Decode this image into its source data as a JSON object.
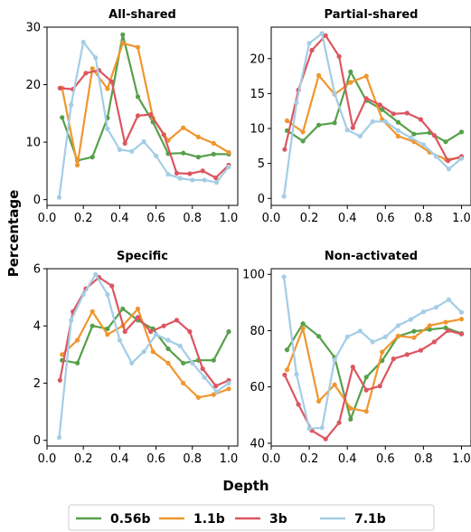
{
  "chart_data": {
    "type": "line",
    "xlabel": "Depth",
    "ylabel": "Percentage",
    "legend": {
      "placement": "bottom",
      "entries": [
        "0.56b",
        "1.1b",
        "3b",
        "7.1b"
      ]
    },
    "series_colors": {
      "0.56b": "#56a04a",
      "1.1b": "#f0962e",
      "3b": "#dc5660",
      "7.1b": "#a4cde6"
    },
    "panels": [
      {
        "title": "All-shared",
        "xlim": [
          0.0,
          1.05
        ],
        "ylim": [
          -1,
          30
        ],
        "xticks": [
          0.0,
          0.2,
          0.4,
          0.6,
          0.8,
          1.0
        ],
        "yticks": [
          0,
          10,
          20,
          30
        ],
        "series": [
          {
            "name": "0.56b",
            "x": [
              0.083,
              0.167,
              0.25,
              0.333,
              0.417,
              0.5,
              0.583,
              0.667,
              0.75,
              0.833,
              0.917,
              1.0
            ],
            "y": [
              14.3,
              6.8,
              7.4,
              14.2,
              28.7,
              17.9,
              13.5,
              8.0,
              8.1,
              7.4,
              7.9,
              7.9
            ]
          },
          {
            "name": "1.1b",
            "x": [
              0.083,
              0.167,
              0.25,
              0.333,
              0.417,
              0.5,
              0.583,
              0.667,
              0.75,
              0.833,
              0.917,
              1.0
            ],
            "y": [
              19.4,
              6.0,
              22.8,
              19.3,
              27.2,
              26.5,
              14.2,
              10.3,
              12.5,
              10.9,
              9.8,
              8.2
            ]
          },
          {
            "name": "3b",
            "x": [
              0.071,
              0.143,
              0.214,
              0.286,
              0.357,
              0.429,
              0.5,
              0.571,
              0.643,
              0.714,
              0.786,
              0.857,
              0.929,
              1.0
            ],
            "y": [
              19.4,
              19.2,
              22.0,
              22.5,
              20.5,
              9.8,
              14.6,
              14.8,
              11.3,
              4.6,
              4.5,
              5.0,
              3.8,
              6.0
            ]
          },
          {
            "name": "7.1b",
            "x": [
              0.067,
              0.133,
              0.2,
              0.267,
              0.333,
              0.4,
              0.467,
              0.533,
              0.6,
              0.667,
              0.733,
              0.8,
              0.867,
              0.933,
              1.0
            ],
            "y": [
              0.4,
              16.5,
              27.4,
              24.7,
              12.3,
              8.7,
              8.4,
              10.1,
              7.6,
              4.4,
              3.7,
              3.4,
              3.4,
              3.0,
              5.7
            ]
          }
        ]
      },
      {
        "title": "Partial-shared",
        "xlim": [
          0.0,
          1.05
        ],
        "ylim": [
          -1,
          24.5
        ],
        "xticks": [
          0.0,
          0.2,
          0.4,
          0.6,
          0.8,
          1.0
        ],
        "yticks": [
          0,
          5,
          10,
          15,
          20
        ],
        "series": [
          {
            "name": "0.56b",
            "x": [
              0.083,
              0.167,
              0.25,
              0.333,
              0.417,
              0.5,
              0.583,
              0.667,
              0.75,
              0.833,
              0.917,
              1.0
            ],
            "y": [
              9.7,
              8.2,
              10.5,
              10.8,
              18.1,
              14.0,
              12.7,
              10.9,
              9.2,
              9.4,
              8.1,
              9.5
            ]
          },
          {
            "name": "1.1b",
            "x": [
              0.083,
              0.167,
              0.25,
              0.333,
              0.417,
              0.5,
              0.583,
              0.667,
              0.75,
              0.833,
              0.917,
              1.0
            ],
            "y": [
              11.1,
              9.5,
              17.6,
              14.9,
              16.6,
              17.5,
              11.3,
              8.9,
              8.1,
              6.6,
              5.6,
              5.8
            ]
          },
          {
            "name": "3b",
            "x": [
              0.071,
              0.143,
              0.214,
              0.286,
              0.357,
              0.429,
              0.5,
              0.571,
              0.643,
              0.714,
              0.786,
              0.857,
              0.929,
              1.0
            ],
            "y": [
              7.0,
              15.5,
              21.2,
              23.3,
              20.3,
              10.1,
              14.3,
              13.4,
              12.1,
              12.2,
              11.3,
              9.0,
              5.4,
              6.0
            ]
          },
          {
            "name": "7.1b",
            "x": [
              0.067,
              0.133,
              0.2,
              0.267,
              0.333,
              0.4,
              0.467,
              0.533,
              0.6,
              0.667,
              0.733,
              0.8,
              0.867,
              0.933,
              1.0
            ],
            "y": [
              0.3,
              13.7,
              22.2,
              23.6,
              15.0,
              9.8,
              8.9,
              11.0,
              11.0,
              9.7,
              8.7,
              7.7,
              6.0,
              4.2,
              5.7
            ]
          }
        ]
      },
      {
        "title": "Specific",
        "xlim": [
          0.0,
          1.05
        ],
        "ylim": [
          -0.2,
          6.0
        ],
        "xticks": [
          0.0,
          0.2,
          0.4,
          0.6,
          0.8,
          1.0
        ],
        "yticks": [
          0,
          2,
          4,
          6
        ],
        "series": [
          {
            "name": "0.56b",
            "x": [
              0.083,
              0.167,
              0.25,
              0.333,
              0.417,
              0.5,
              0.583,
              0.667,
              0.75,
              0.833,
              0.917,
              1.0
            ],
            "y": [
              2.8,
              2.7,
              4.0,
              3.9,
              4.6,
              4.2,
              3.9,
              3.2,
              2.7,
              2.8,
              2.8,
              3.8
            ]
          },
          {
            "name": "1.1b",
            "x": [
              0.083,
              0.167,
              0.25,
              0.333,
              0.417,
              0.5,
              0.583,
              0.667,
              0.75,
              0.833,
              0.917,
              1.0
            ],
            "y": [
              3.0,
              3.5,
              4.5,
              3.7,
              4.0,
              4.6,
              3.1,
              2.7,
              2.0,
              1.5,
              1.6,
              1.8
            ]
          },
          {
            "name": "3b",
            "x": [
              0.071,
              0.143,
              0.214,
              0.286,
              0.357,
              0.429,
              0.5,
              0.571,
              0.643,
              0.714,
              0.786,
              0.857,
              0.929,
              1.0
            ],
            "y": [
              2.1,
              4.5,
              5.3,
              5.7,
              5.4,
              3.8,
              4.3,
              3.8,
              4.0,
              4.2,
              3.8,
              2.5,
              1.9,
              2.1
            ]
          },
          {
            "name": "7.1b",
            "x": [
              0.067,
              0.133,
              0.2,
              0.267,
              0.333,
              0.4,
              0.467,
              0.533,
              0.6,
              0.667,
              0.733,
              0.8,
              0.867,
              0.933,
              1.0
            ],
            "y": [
              0.1,
              4.2,
              5.1,
              5.8,
              5.1,
              3.5,
              2.7,
              3.1,
              3.7,
              3.5,
              3.3,
              2.7,
              2.2,
              1.7,
              2.0
            ]
          }
        ]
      },
      {
        "title": "Non-activated",
        "xlim": [
          0.0,
          1.05
        ],
        "ylim": [
          39,
          102
        ],
        "xticks": [
          0.0,
          0.2,
          0.4,
          0.6,
          0.8,
          1.0
        ],
        "yticks": [
          40,
          60,
          80,
          100
        ],
        "series": [
          {
            "name": "0.56b",
            "x": [
              0.083,
              0.167,
              0.25,
              0.333,
              0.417,
              0.5,
              0.583,
              0.667,
              0.75,
              0.833,
              0.917,
              1.0
            ],
            "y": [
              73.2,
              82.5,
              78.0,
              70.5,
              48.5,
              63.5,
              69.3,
              78.0,
              79.8,
              80.4,
              81.0,
              79.0
            ]
          },
          {
            "name": "1.1b",
            "x": [
              0.083,
              0.167,
              0.25,
              0.333,
              0.417,
              0.5,
              0.583,
              0.667,
              0.75,
              0.833,
              0.917,
              1.0
            ],
            "y": [
              66.1,
              80.8,
              54.9,
              60.8,
              52.4,
              51.3,
              72.4,
              78.1,
              77.5,
              81.8,
              83.0,
              84.1
            ]
          },
          {
            "name": "3b",
            "x": [
              0.071,
              0.143,
              0.214,
              0.286,
              0.357,
              0.429,
              0.5,
              0.571,
              0.643,
              0.714,
              0.786,
              0.857,
              0.929,
              1.0
            ],
            "y": [
              64.3,
              53.8,
              44.5,
              41.5,
              47.3,
              67.1,
              58.9,
              60.3,
              70.0,
              71.5,
              73.0,
              76.0,
              80.0,
              78.8
            ]
          },
          {
            "name": "7.1b",
            "x": [
              0.067,
              0.133,
              0.2,
              0.267,
              0.333,
              0.4,
              0.467,
              0.533,
              0.6,
              0.667,
              0.733,
              0.8,
              0.867,
              0.933,
              1.0
            ],
            "y": [
              99.1,
              64.5,
              45.2,
              45.5,
              69.6,
              77.8,
              79.9,
              76.0,
              77.8,
              81.8,
              84.0,
              86.7,
              88.3,
              91.0,
              86.5
            ]
          }
        ]
      }
    ]
  }
}
